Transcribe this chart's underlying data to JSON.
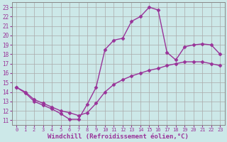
{
  "line1_x": [
    0,
    1,
    2,
    3,
    4,
    5,
    6,
    7,
    8,
    9,
    10,
    11,
    12,
    13,
    14,
    15,
    16,
    17,
    18,
    19,
    20,
    21,
    22,
    23
  ],
  "line1_y": [
    14.5,
    13.9,
    13.0,
    12.6,
    12.2,
    11.7,
    11.1,
    11.1,
    12.7,
    14.5,
    18.5,
    19.5,
    19.7,
    21.5,
    22.0,
    23.0,
    22.7,
    18.2,
    17.4,
    18.8,
    19.0,
    19.1,
    19.0,
    18.0
  ],
  "line2_x": [
    0,
    1,
    2,
    3,
    4,
    5,
    6,
    7,
    8,
    9,
    10,
    11,
    12,
    13,
    14,
    15,
    16,
    17,
    18,
    19,
    20,
    21,
    22,
    23
  ],
  "line2_y": [
    14.5,
    14.0,
    13.2,
    12.8,
    12.4,
    12.0,
    11.8,
    11.5,
    11.8,
    12.8,
    14.0,
    14.8,
    15.3,
    15.7,
    16.0,
    16.3,
    16.5,
    16.8,
    17.0,
    17.2,
    17.2,
    17.2,
    17.0,
    16.8
  ],
  "line_color": "#993399",
  "bg_color": "#cce8e8",
  "grid_color": "#aaaaaa",
  "xlabel": "Windchill (Refroidissement éolien,°C)",
  "xlim": [
    -0.5,
    23.5
  ],
  "ylim": [
    10.5,
    23.5
  ],
  "xticks": [
    0,
    1,
    2,
    3,
    4,
    5,
    6,
    7,
    8,
    9,
    10,
    11,
    12,
    13,
    14,
    15,
    16,
    17,
    18,
    19,
    20,
    21,
    22,
    23
  ],
  "yticks": [
    11,
    12,
    13,
    14,
    15,
    16,
    17,
    18,
    19,
    20,
    21,
    22,
    23
  ],
  "marker": "D",
  "markersize": 2.5,
  "linewidth": 1.0,
  "xlabel_fontsize": 6.5,
  "tick_fontsize": 5.5,
  "xtick_fontsize": 5.0
}
